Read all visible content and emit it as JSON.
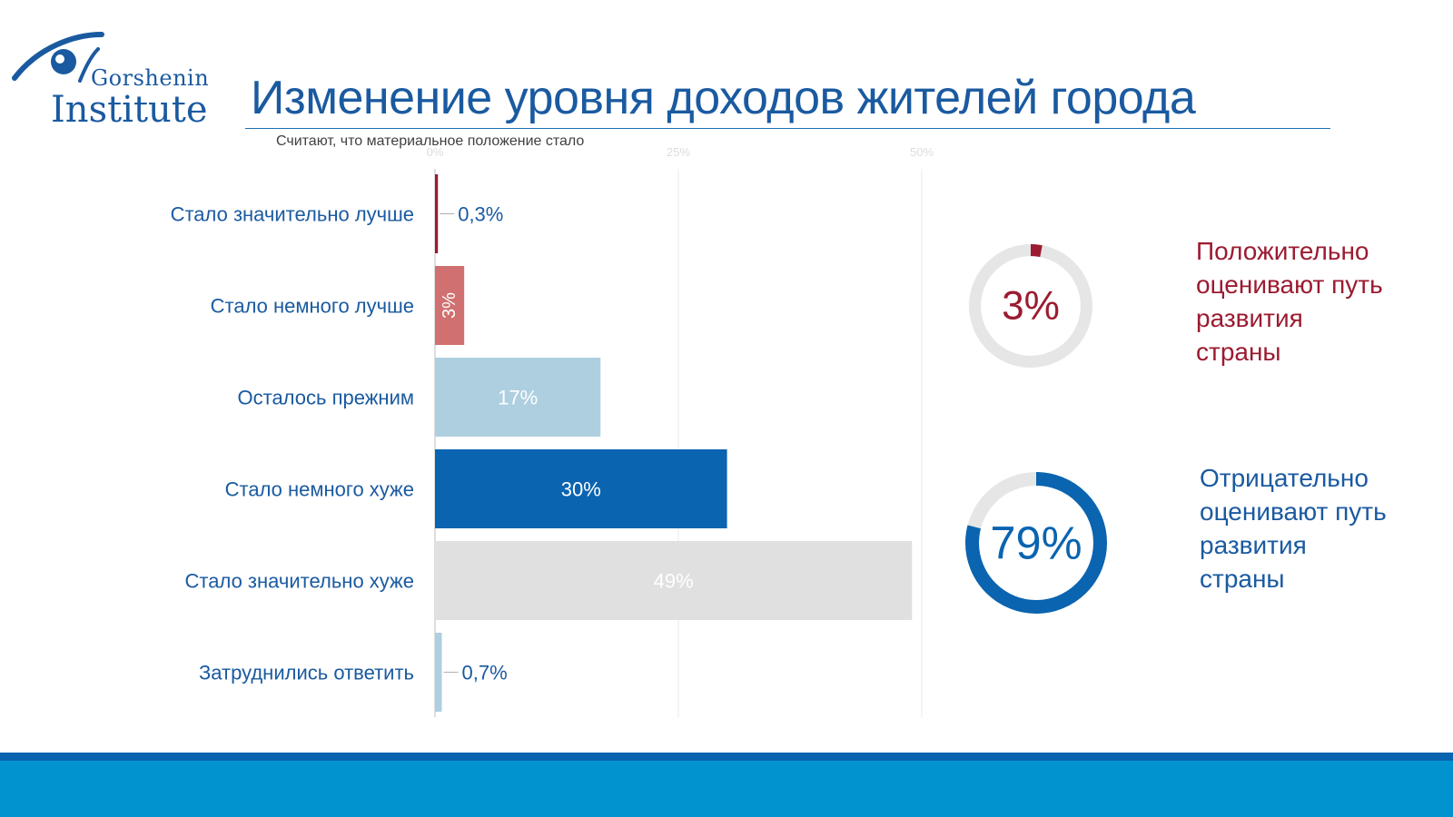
{
  "logo": {
    "line1": "Gorshenin",
    "line2": "Institute"
  },
  "title": "Изменение уровня доходов жителей города",
  "subtitle": "Считают, что материальное положение стало",
  "chart_data": {
    "type": "bar",
    "orientation": "horizontal",
    "categories": [
      "Стало значительно лучше",
      "Стало немного лучше",
      "Осталось прежним",
      "Стало немного хуже",
      "Стало значительно хуже",
      "Затруднились ответить"
    ],
    "values": [
      0.3,
      3,
      17,
      30,
      49,
      0.7
    ],
    "value_labels": [
      "0,3%",
      "3%",
      "17%",
      "30%",
      "49%",
      "0,7%"
    ],
    "bar_colors": [
      "#9b1b30",
      "#d07070",
      "#aecfe0",
      "#0a64b0",
      "#e0e0e0",
      "#aecfe0"
    ],
    "xlim": [
      0,
      75
    ],
    "x_tick_values": [
      0,
      25,
      50
    ],
    "x_tick_labels": [
      "0%",
      "25%",
      "50%"
    ],
    "grid": true
  },
  "donuts": [
    {
      "value": 3,
      "label": "3%",
      "color": "#9b1b30",
      "text_lines": [
        "Положительно",
        "оценивают путь",
        "развития",
        "страны"
      ]
    },
    {
      "value": 79,
      "label": "79%",
      "color": "#0a64b0",
      "text_lines": [
        "Отрицательно",
        "оценивают путь",
        "развития",
        "страны"
      ]
    }
  ],
  "colors": {
    "brand": "#1a5aa0",
    "footer": "#0093d0",
    "footer_stripe": "#0a64b0",
    "donut_track": "#e6e6e6",
    "label_text": "#1a5aa0"
  }
}
